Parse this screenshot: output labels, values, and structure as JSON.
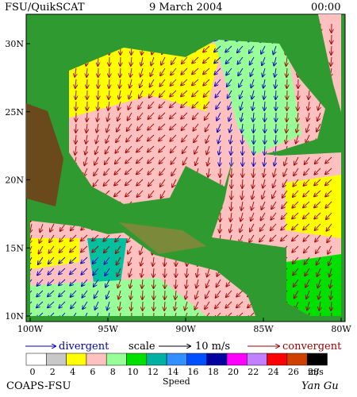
{
  "header": {
    "source": "FSU/QuikSCAT",
    "date": "9 March 2004",
    "time": "00:00"
  },
  "map": {
    "lat_labels": [
      "30N",
      "25N",
      "20N",
      "15N",
      "10N"
    ],
    "lon_labels": [
      "100W",
      "95W",
      "90W",
      "85W",
      "80W"
    ]
  },
  "legend": {
    "divergent": "divergent",
    "scale": "scale",
    "scale_value": "10 m/s",
    "convergent": "convergent"
  },
  "colorbar": {
    "labels": [
      "0",
      "2",
      "4",
      "6",
      "8",
      "10",
      "12",
      "14",
      "16",
      "18",
      "20",
      "22",
      "24",
      "26",
      "28"
    ],
    "unit": "m/s",
    "title": "Speed"
  },
  "footer": {
    "org": "COAPS-FSU",
    "author": "Yan Gu"
  }
}
